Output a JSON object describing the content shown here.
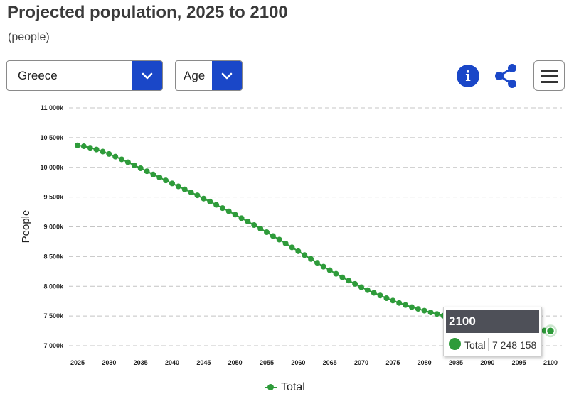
{
  "header": {
    "title": "Projected population, 2025 to 2100",
    "subtitle": "(people)"
  },
  "controls": {
    "country_select": {
      "value": "Greece"
    },
    "variable_select": {
      "value": "Age"
    }
  },
  "toolbar": {
    "info_label": "i",
    "icons": [
      "info-icon",
      "share-icon",
      "menu-icon"
    ]
  },
  "colors": {
    "series": "#2e9b3a",
    "accent": "#1a47c8",
    "tooltip_header": "#4e5058",
    "grid": "#c4c4c4"
  },
  "tooltip": {
    "year": "2100",
    "series": "Total",
    "value": "7 248 158"
  },
  "legend": {
    "label": "Total"
  },
  "chart_data": {
    "type": "line",
    "title": "Projected population, 2025 to 2100",
    "subtitle": "(people)",
    "xlabel": "",
    "ylabel": "People",
    "xlim": [
      2025,
      2100
    ],
    "ylim": [
      7000000,
      11000000
    ],
    "grid": true,
    "legend_position": "bottom",
    "x_ticks": [
      "2025",
      "2030",
      "2035",
      "2040",
      "2045",
      "2050",
      "2055",
      "2060",
      "2065",
      "2070",
      "2075",
      "2080",
      "2085",
      "2090",
      "2095",
      "2100"
    ],
    "y_ticks": [
      {
        "value": 11000000,
        "label": "11 000k"
      },
      {
        "value": 10500000,
        "label": "10 500k"
      },
      {
        "value": 10000000,
        "label": "10 000k"
      },
      {
        "value": 9500000,
        "label": "9 500k"
      },
      {
        "value": 9000000,
        "label": "9 000k"
      },
      {
        "value": 8500000,
        "label": "8 500k"
      },
      {
        "value": 8000000,
        "label": "8 000k"
      },
      {
        "value": 7500000,
        "label": "7 500k"
      },
      {
        "value": 7000000,
        "label": "7 000k"
      }
    ],
    "x": [
      2025,
      2026,
      2027,
      2028,
      2029,
      2030,
      2031,
      2032,
      2033,
      2034,
      2035,
      2036,
      2037,
      2038,
      2039,
      2040,
      2041,
      2042,
      2043,
      2044,
      2045,
      2046,
      2047,
      2048,
      2049,
      2050,
      2051,
      2052,
      2053,
      2054,
      2055,
      2056,
      2057,
      2058,
      2059,
      2060,
      2061,
      2062,
      2063,
      2064,
      2065,
      2066,
      2067,
      2068,
      2069,
      2070,
      2071,
      2072,
      2073,
      2074,
      2075,
      2076,
      2077,
      2078,
      2079,
      2080,
      2081,
      2082,
      2083,
      2084,
      2085,
      2086,
      2087,
      2088,
      2089,
      2090,
      2091,
      2092,
      2093,
      2094,
      2095,
      2096,
      2097,
      2098,
      2099,
      2100
    ],
    "series": [
      {
        "name": "Total",
        "color": "#2e9b3a",
        "values": [
          10370000,
          10355000,
          10330000,
          10300000,
          10265000,
          10225000,
          10180000,
          10135000,
          10085000,
          10035000,
          9985000,
          9935000,
          9880000,
          9830000,
          9780000,
          9730000,
          9680000,
          9630000,
          9580000,
          9530000,
          9475000,
          9425000,
          9370000,
          9315000,
          9260000,
          9205000,
          9145000,
          9090000,
          9030000,
          8970000,
          8910000,
          8845000,
          8785000,
          8720000,
          8655000,
          8590000,
          8525000,
          8460000,
          8395000,
          8330000,
          8270000,
          8210000,
          8150000,
          8095000,
          8040000,
          7985000,
          7935000,
          7890000,
          7845000,
          7800000,
          7760000,
          7720000,
          7685000,
          7650000,
          7620000,
          7590000,
          7560000,
          7535000,
          7505000,
          7480000,
          7455000,
          7435000,
          7415000,
          7395000,
          7375000,
          7355000,
          7340000,
          7325000,
          7310000,
          7300000,
          7290000,
          7280000,
          7270000,
          7262000,
          7255000,
          7248158
        ]
      }
    ]
  }
}
